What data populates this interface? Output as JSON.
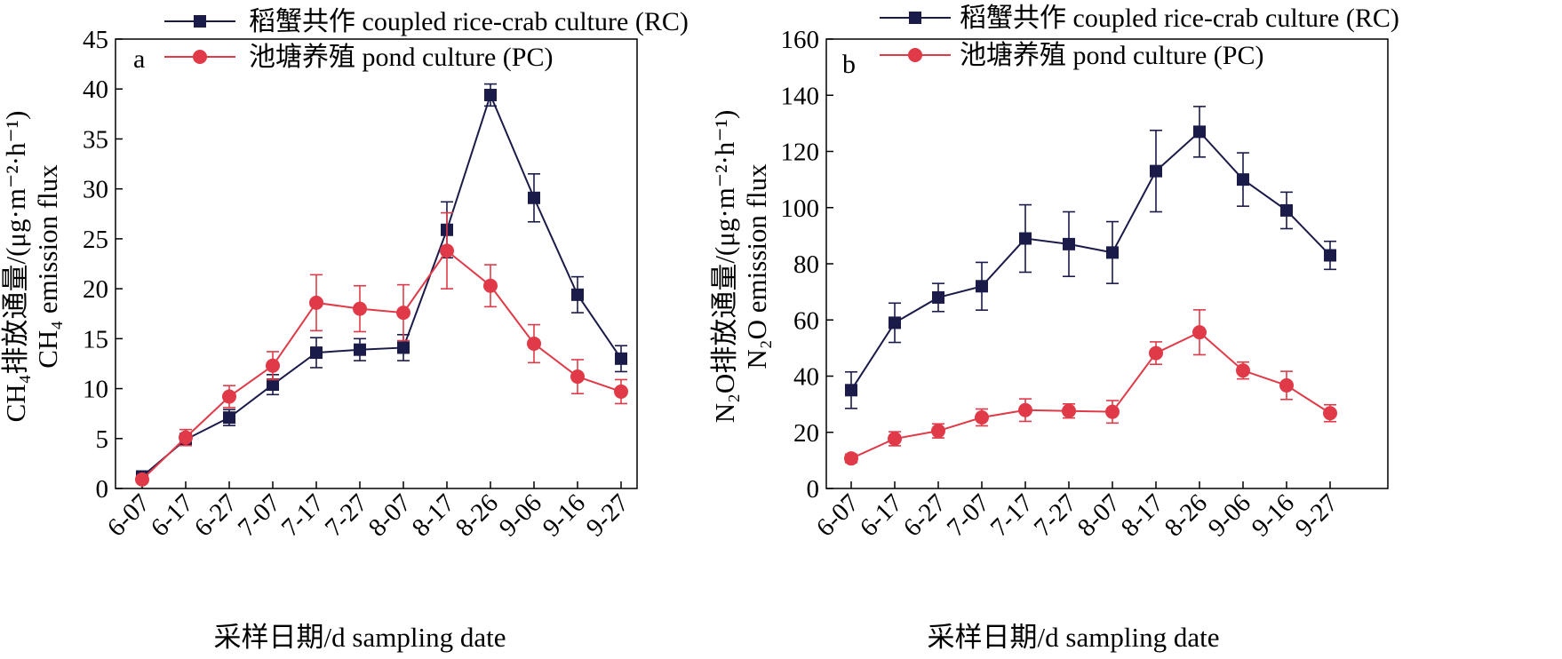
{
  "colors": {
    "rc": "#1b1b4a",
    "pc": "#e03a48",
    "axis": "#000000"
  },
  "chart_data": [
    {
      "type": "line",
      "panel_label": "a",
      "categories": [
        "6-07",
        "6-17",
        "6-27",
        "7-07",
        "7-17",
        "7-27",
        "8-07",
        "8-17",
        "8-26",
        "9-06",
        "9-16",
        "9-27"
      ],
      "xlabel": "采样日期/d sampling date",
      "ylabel_lines": [
        "CH₄排放通量/(μg·m⁻²·h⁻¹)",
        "CH₄ emission flux"
      ],
      "ylim": [
        0,
        45
      ],
      "yticks": [
        0,
        5,
        10,
        15,
        20,
        25,
        30,
        35,
        40,
        45
      ],
      "grid": false,
      "legend_position": "top",
      "series": [
        {
          "name": "稻蟹共作 coupled rice-crab culture (RC)",
          "marker": "square",
          "color": "#1b1b4a",
          "values": [
            1.2,
            4.9,
            7.1,
            10.4,
            13.6,
            13.9,
            14.1,
            25.9,
            39.4,
            29.1,
            19.4,
            13.0
          ],
          "errors": [
            0.4,
            0.6,
            0.8,
            1.0,
            1.5,
            1.1,
            1.3,
            2.8,
            1.1,
            2.4,
            1.8,
            1.3
          ]
        },
        {
          "name": "池塘养殖 pond culture (PC)",
          "marker": "circle",
          "color": "#e03a48",
          "values": [
            0.9,
            5.1,
            9.2,
            12.3,
            18.6,
            18.0,
            17.6,
            23.8,
            20.3,
            14.5,
            11.2,
            9.7
          ],
          "errors": [
            0.3,
            0.8,
            1.1,
            1.4,
            2.8,
            2.3,
            2.8,
            3.8,
            2.1,
            1.9,
            1.7,
            1.2
          ]
        }
      ]
    },
    {
      "type": "line",
      "panel_label": "b",
      "categories": [
        "6-07",
        "6-17",
        "6-27",
        "7-07",
        "7-17",
        "7-27",
        "8-07",
        "8-17",
        "8-26",
        "9-06",
        "9-16",
        "9-27"
      ],
      "xlabel": "采样日期/d sampling date",
      "ylabel_lines": [
        "N₂O排放通量/(μg·m⁻²·h⁻¹)",
        "N₂O emission flux"
      ],
      "ylim": [
        0,
        160
      ],
      "yticks": [
        0,
        20,
        40,
        60,
        80,
        100,
        120,
        140,
        160
      ],
      "grid": false,
      "legend_position": "top",
      "series": [
        {
          "name": "稻蟹共作 coupled rice-crab culture (RC)",
          "marker": "square",
          "color": "#1b1b4a",
          "values": [
            35,
            59,
            68,
            72,
            89,
            87,
            84,
            113,
            127,
            110,
            99,
            83
          ],
          "errors": [
            6.5,
            7,
            5,
            8.5,
            12,
            11.5,
            11,
            14.5,
            9,
            9.5,
            6.5,
            5
          ]
        },
        {
          "name": "池塘养殖 pond culture (PC)",
          "marker": "circle",
          "color": "#e03a48",
          "values": [
            10.7,
            17.7,
            20.5,
            25.3,
            27.9,
            27.6,
            27.3,
            48.2,
            55.6,
            42.0,
            36.7,
            26.8
          ],
          "errors": [
            1.5,
            2.5,
            2.5,
            3,
            4,
            2.5,
            4,
            4,
            8,
            3,
            5,
            3
          ]
        }
      ]
    }
  ]
}
